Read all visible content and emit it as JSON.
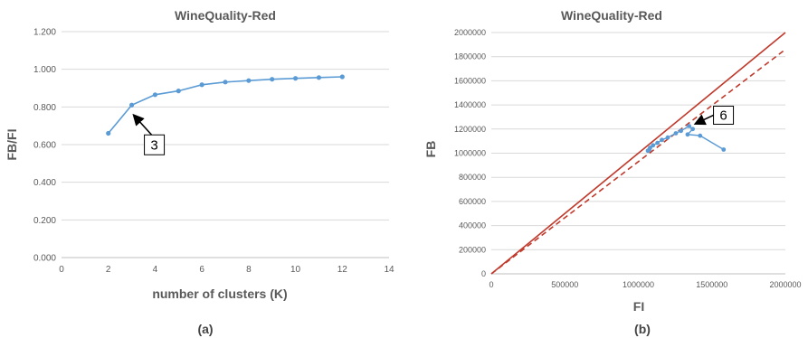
{
  "chart_data": [
    {
      "type": "line",
      "title": "WineQuality-Red",
      "xlabel": "number of clusters (K)",
      "ylabel": "FB/FI",
      "caption": "(a)",
      "xlim": [
        0,
        14
      ],
      "ylim": [
        0,
        1.2
      ],
      "xticks": [
        "0",
        "2",
        "4",
        "6",
        "8",
        "10",
        "12",
        "14"
      ],
      "yticks": [
        "0.000",
        "0.200",
        "0.400",
        "0.600",
        "0.800",
        "1.000",
        "1.200"
      ],
      "grid": "horizontal",
      "series": [
        {
          "x": [
            2,
            3,
            4,
            5,
            6,
            7,
            8,
            9,
            10,
            11,
            12
          ],
          "y": [
            0.66,
            0.81,
            0.865,
            0.885,
            0.918,
            0.932,
            0.94,
            0.947,
            0.952,
            0.956,
            0.96
          ]
        }
      ],
      "annotation": {
        "text": "3",
        "x": 3,
        "y": 0.81
      },
      "color": "#5b9bd5"
    },
    {
      "type": "scatter",
      "title": "WineQuality-Red",
      "xlabel": "FI",
      "ylabel": "FB",
      "caption": "(b)",
      "xlim": [
        0,
        2000000
      ],
      "ylim": [
        0,
        2000000
      ],
      "xticks": [
        "0",
        "500000",
        "1000000",
        "1500000",
        "2000000"
      ],
      "yticks": [
        "0",
        "200000",
        "400000",
        "600000",
        "800000",
        "1000000",
        "1200000",
        "1400000",
        "1600000",
        "1800000",
        "2000000"
      ],
      "grid": "horizontal",
      "series": [
        {
          "x": [
            1580000,
            1420000,
            1335000,
            1370000,
            1345000,
            1290000,
            1255000,
            1200000,
            1160000,
            1130000,
            1100000,
            1080000,
            1065000,
            1075000
          ],
          "y": [
            1030000,
            1145000,
            1155000,
            1200000,
            1225000,
            1185000,
            1165000,
            1130000,
            1110000,
            1085000,
            1065000,
            1045000,
            1020000,
            1030000
          ]
        }
      ],
      "reference_lines": [
        {
          "style": "solid",
          "slope": 1.0
        },
        {
          "style": "dashed",
          "slope": 0.93
        }
      ],
      "annotation": {
        "text": "6",
        "x": 1345000,
        "y": 1225000
      },
      "colors": {
        "points": "#5b9bd5",
        "reference": "#c0392b"
      }
    }
  ]
}
